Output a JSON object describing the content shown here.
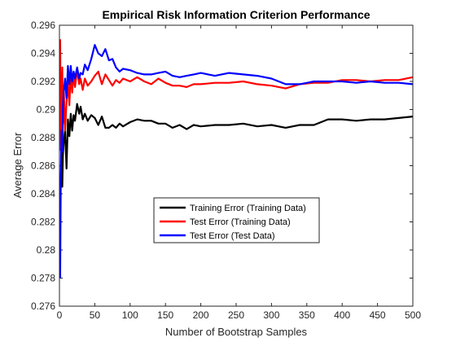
{
  "chart_data": {
    "type": "line",
    "title": "Empirical Risk Information Criterion Performance",
    "xlabel": "Number of Bootstrap Samples",
    "ylabel": "Average Error",
    "xlim": [
      0,
      500
    ],
    "ylim": [
      0.276,
      0.296
    ],
    "xticks": [
      0,
      50,
      100,
      150,
      200,
      250,
      300,
      350,
      400,
      450,
      500
    ],
    "yticks": [
      0.276,
      0.278,
      0.28,
      0.282,
      0.284,
      0.286,
      0.288,
      0.29,
      0.292,
      0.294,
      0.296
    ],
    "ytick_labels": [
      "0.276",
      "0.278",
      "0.28",
      "0.282",
      "0.284",
      "0.286",
      "0.288",
      "0.29",
      "0.292",
      "0.294",
      "0.296"
    ],
    "grid": false,
    "legend_position": "center",
    "series": [
      {
        "name": "Training Error (Training Data)",
        "color": "#000000",
        "x": [
          1,
          2,
          3,
          4,
          5,
          6,
          8,
          10,
          12,
          14,
          16,
          18,
          20,
          22,
          25,
          28,
          30,
          33,
          36,
          40,
          45,
          50,
          55,
          60,
          65,
          70,
          75,
          80,
          85,
          90,
          100,
          110,
          120,
          130,
          140,
          150,
          160,
          170,
          180,
          190,
          200,
          220,
          240,
          260,
          280,
          300,
          320,
          340,
          360,
          380,
          400,
          420,
          440,
          460,
          480,
          500
        ],
        "y": [
          0.2835,
          0.2848,
          0.2872,
          0.2845,
          0.2868,
          0.2876,
          0.2885,
          0.2858,
          0.2893,
          0.2881,
          0.2897,
          0.2885,
          0.2896,
          0.2892,
          0.2904,
          0.2897,
          0.2902,
          0.2893,
          0.2897,
          0.2892,
          0.2896,
          0.2894,
          0.2889,
          0.2895,
          0.2887,
          0.2887,
          0.2889,
          0.2887,
          0.289,
          0.2888,
          0.2891,
          0.2893,
          0.2892,
          0.2892,
          0.289,
          0.289,
          0.2887,
          0.2889,
          0.2886,
          0.2889,
          0.2888,
          0.2889,
          0.2889,
          0.289,
          0.2888,
          0.2889,
          0.2887,
          0.2889,
          0.2889,
          0.2893,
          0.2893,
          0.2892,
          0.2893,
          0.2893,
          0.2894,
          0.2895
        ]
      },
      {
        "name": "Test Error (Training Data)",
        "color": "#ff0000",
        "x": [
          1,
          2,
          3,
          4,
          5,
          6,
          8,
          10,
          12,
          14,
          16,
          18,
          20,
          22,
          25,
          28,
          30,
          33,
          36,
          40,
          45,
          50,
          55,
          60,
          65,
          70,
          75,
          80,
          85,
          90,
          100,
          110,
          120,
          130,
          140,
          150,
          160,
          170,
          180,
          190,
          200,
          220,
          240,
          260,
          280,
          300,
          320,
          340,
          360,
          380,
          400,
          420,
          440,
          460,
          480,
          500
        ],
        "y": [
          0.295,
          0.2871,
          0.2907,
          0.293,
          0.289,
          0.2917,
          0.2885,
          0.2905,
          0.292,
          0.2903,
          0.2927,
          0.2912,
          0.2925,
          0.2916,
          0.2928,
          0.2918,
          0.2922,
          0.2914,
          0.2922,
          0.2917,
          0.292,
          0.2924,
          0.2927,
          0.2918,
          0.2925,
          0.2921,
          0.2917,
          0.2921,
          0.2919,
          0.2922,
          0.292,
          0.2923,
          0.292,
          0.2918,
          0.2922,
          0.2919,
          0.2917,
          0.2917,
          0.2916,
          0.2918,
          0.2918,
          0.2919,
          0.2919,
          0.292,
          0.2918,
          0.2917,
          0.2915,
          0.2918,
          0.2919,
          0.2919,
          0.2921,
          0.2921,
          0.292,
          0.2921,
          0.2921,
          0.2923
        ]
      },
      {
        "name": "Test Error (Test Data)",
        "color": "#0000ff",
        "x": [
          1,
          2,
          3,
          4,
          5,
          6,
          8,
          10,
          12,
          14,
          16,
          18,
          20,
          22,
          25,
          28,
          30,
          33,
          36,
          40,
          45,
          50,
          55,
          60,
          65,
          70,
          75,
          80,
          85,
          90,
          100,
          110,
          120,
          130,
          140,
          150,
          160,
          170,
          180,
          190,
          200,
          220,
          240,
          260,
          280,
          300,
          320,
          340,
          360,
          380,
          400,
          420,
          440,
          460,
          480,
          500
        ],
        "y": [
          0.278,
          0.2853,
          0.2885,
          0.287,
          0.2902,
          0.2912,
          0.2922,
          0.2908,
          0.2931,
          0.2918,
          0.2931,
          0.292,
          0.2927,
          0.2922,
          0.293,
          0.2922,
          0.2926,
          0.2925,
          0.2932,
          0.2928,
          0.2936,
          0.2946,
          0.294,
          0.2938,
          0.2943,
          0.2935,
          0.2936,
          0.293,
          0.2927,
          0.2929,
          0.2928,
          0.2926,
          0.2925,
          0.2925,
          0.2926,
          0.2927,
          0.2924,
          0.2923,
          0.2924,
          0.2925,
          0.2926,
          0.2924,
          0.2926,
          0.2925,
          0.2924,
          0.2922,
          0.2918,
          0.2918,
          0.292,
          0.292,
          0.292,
          0.2919,
          0.292,
          0.2919,
          0.2919,
          0.2918
        ]
      }
    ]
  }
}
